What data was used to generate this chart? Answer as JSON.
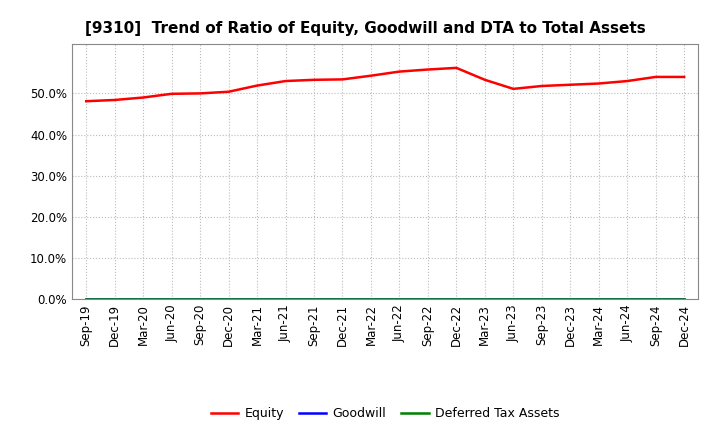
{
  "title": "[9310]  Trend of Ratio of Equity, Goodwill and DTA to Total Assets",
  "x_labels": [
    "Sep-19",
    "Dec-19",
    "Mar-20",
    "Jun-20",
    "Sep-20",
    "Dec-20",
    "Mar-21",
    "Jun-21",
    "Sep-21",
    "Dec-21",
    "Mar-22",
    "Jun-22",
    "Sep-22",
    "Dec-22",
    "Mar-23",
    "Jun-23",
    "Sep-23",
    "Dec-23",
    "Mar-24",
    "Jun-24",
    "Sep-24",
    "Dec-24"
  ],
  "equity": [
    0.481,
    0.484,
    0.49,
    0.499,
    0.5,
    0.504,
    0.519,
    0.53,
    0.533,
    0.534,
    0.543,
    0.553,
    0.558,
    0.562,
    0.533,
    0.511,
    0.518,
    0.521,
    0.524,
    0.53,
    0.54,
    0.54
  ],
  "goodwill": [
    0.0,
    0.0,
    0.0,
    0.0,
    0.0,
    0.0,
    0.0,
    0.0,
    0.0,
    0.0,
    0.0,
    0.0,
    0.0,
    0.0,
    0.0,
    0.0,
    0.0,
    0.0,
    0.0,
    0.0,
    0.0,
    0.0
  ],
  "dta": [
    0.0,
    0.0,
    0.0,
    0.0,
    0.0,
    0.0,
    0.0,
    0.0,
    0.0,
    0.0,
    0.0,
    0.0,
    0.0,
    0.0,
    0.0,
    0.0,
    0.0,
    0.0,
    0.0,
    0.0,
    0.0,
    0.0
  ],
  "equity_color": "#FF0000",
  "goodwill_color": "#0000FF",
  "dta_color": "#008000",
  "ylim": [
    0.0,
    0.62
  ],
  "yticks": [
    0.0,
    0.1,
    0.2,
    0.3,
    0.4,
    0.5
  ],
  "background_color": "#FFFFFF",
  "grid_color": "#BBBBBB",
  "title_fontsize": 11,
  "tick_fontsize": 8.5,
  "legend_labels": [
    "Equity",
    "Goodwill",
    "Deferred Tax Assets"
  ]
}
